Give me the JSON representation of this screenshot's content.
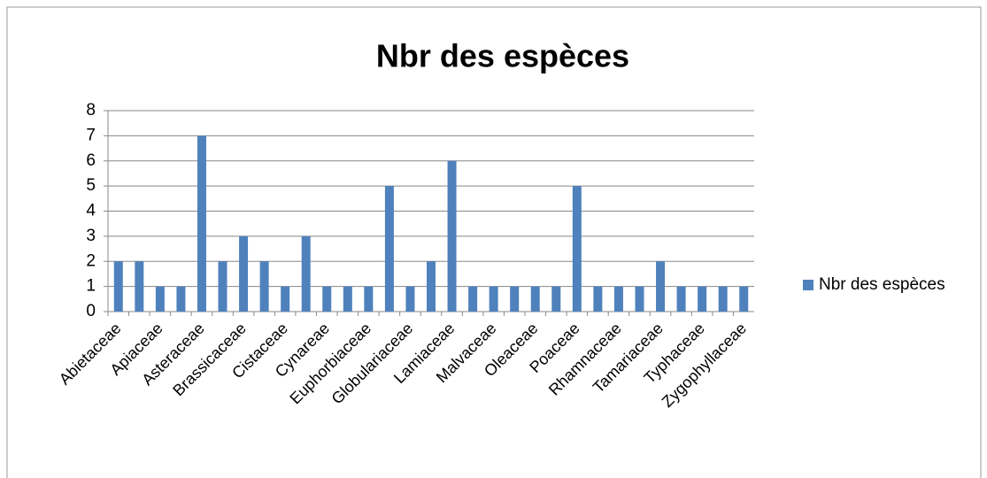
{
  "chart_data": {
    "type": "bar",
    "title": "Nbr des espèces",
    "categories": [
      "Abietaceae",
      null,
      "Apiaceae",
      null,
      "Asteraceae",
      null,
      "Brassicaceae",
      null,
      "Cistaceae",
      null,
      "Cynareae",
      null,
      "Euphorbiaceae",
      null,
      "Globulariaceae",
      null,
      "Lamiaceae",
      null,
      "Malvaceae",
      null,
      "Oleaceae",
      null,
      "Poaceae",
      null,
      "Rhamnaceae",
      null,
      "Tamariaceae",
      null,
      "Typhaceae",
      null,
      "Zygophyllaceae"
    ],
    "series": [
      {
        "name": "Nbr des espèces",
        "color": "#4f81bd",
        "values": [
          2,
          2,
          1,
          1,
          7,
          2,
          3,
          2,
          1,
          3,
          1,
          1,
          1,
          5,
          1,
          2,
          6,
          1,
          1,
          1,
          1,
          1,
          5,
          1,
          1,
          1,
          2,
          1,
          1,
          1,
          1
        ]
      }
    ],
    "ylim": [
      0,
      8
    ],
    "yticks": [
      0,
      1,
      2,
      3,
      4,
      5,
      6,
      7,
      8
    ],
    "grid": true,
    "legend": "right"
  }
}
